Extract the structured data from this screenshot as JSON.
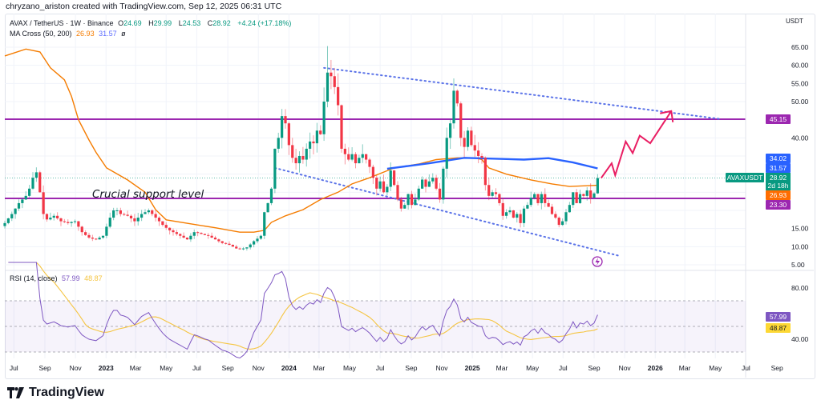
{
  "credit": "chryzano_ariston created with TradingView.com, Sep 12, 2025 06:31 UTC",
  "legend": {
    "symbol": "AVAX / TetherUS · 1W · Binance",
    "o_label": "O",
    "o": "24.69",
    "h_label": "H",
    "h": "29.99",
    "l_label": "L",
    "l": "24.53",
    "c_label": "C",
    "c": "28.92",
    "change": "+4.24 (+17.18%)",
    "ma_name": "MA Cross (50, 200)",
    "ma50": "26.93",
    "ma200": "31.57",
    "ma_icon": "ø"
  },
  "rsi_legend": {
    "name": "RSI (14, close)",
    "rsi": "57.99",
    "ma": "48.87"
  },
  "currency": "USDT",
  "annotation": "Crucial support level",
  "colors": {
    "up": "#089981",
    "down": "#f23645",
    "ma50": "#f57c00",
    "ma200": "#2962ff",
    "level": "#9c27b0",
    "channel": "#5b73e8",
    "arrow": "#e91e63",
    "rsi": "#7e57c2",
    "rsi_ma": "#f5c542"
  },
  "price_ticks": [
    "65.00",
    "60.00",
    "55.00",
    "50.00",
    "40.00",
    "15.00",
    "10.00",
    "5.00"
  ],
  "rsi_ticks": [
    "80.00",
    "40.00"
  ],
  "tags": {
    "level_high": "45.15",
    "blue_a": "34.02",
    "ma200": "31.57",
    "symbol": "AVAXUSDT",
    "last": "28.92",
    "countdown": "2d 18h",
    "ma50": "26.93",
    "level_low": "23.30",
    "rsi": "57.99",
    "rsi_ma": "48.87"
  },
  "time_ticks": [
    {
      "label": "Jul",
      "date": "2022-07-01"
    },
    {
      "label": "Sep",
      "date": "2022-09-01"
    },
    {
      "label": "Nov",
      "date": "2022-11-01"
    },
    {
      "label": "2023",
      "date": "2023-01-01",
      "bold": true
    },
    {
      "label": "Mar",
      "date": "2023-03-01"
    },
    {
      "label": "May",
      "date": "2023-05-01"
    },
    {
      "label": "Jul",
      "date": "2023-07-01"
    },
    {
      "label": "Sep",
      "date": "2023-09-01"
    },
    {
      "label": "Nov",
      "date": "2023-11-01"
    },
    {
      "label": "2024",
      "date": "2024-01-01",
      "bold": true
    },
    {
      "label": "Mar",
      "date": "2024-03-01"
    },
    {
      "label": "May",
      "date": "2024-05-01"
    },
    {
      "label": "Jul",
      "date": "2024-07-01"
    },
    {
      "label": "Sep",
      "date": "2024-09-01"
    },
    {
      "label": "Nov",
      "date": "2024-11-01"
    },
    {
      "label": "2025",
      "date": "2025-01-01",
      "bold": true
    },
    {
      "label": "Mar",
      "date": "2025-03-01"
    },
    {
      "label": "May",
      "date": "2025-05-01"
    },
    {
      "label": "Jul",
      "date": "2025-07-01"
    },
    {
      "label": "Sep",
      "date": "2025-09-01"
    },
    {
      "label": "Nov",
      "date": "2025-11-01"
    },
    {
      "label": "2026",
      "date": "2026-01-01",
      "bold": true
    },
    {
      "label": "Mar",
      "date": "2026-03-01"
    },
    {
      "label": "May",
      "date": "2026-05-01"
    },
    {
      "label": "Jul",
      "date": "2026-07-01"
    },
    {
      "label": "Sep",
      "date": "2026-09-01"
    }
  ],
  "chart_data": {
    "type": "candlestick",
    "interval": "1W",
    "first_week": "2022-06-13",
    "price_range": [
      3,
      69
    ],
    "rsi_range": [
      20,
      90
    ],
    "rsi_bands": [
      70,
      50,
      30
    ],
    "grid": true,
    "closes": [
      16.5,
      17.8,
      19,
      20.5,
      22,
      23,
      24,
      26,
      29,
      30.5,
      25,
      19,
      17.5,
      18,
      18.5,
      17.8,
      17,
      16.8,
      16.5,
      16.8,
      17,
      15.5,
      14,
      13.2,
      12.5,
      12.2,
      12,
      12.5,
      13,
      15.5,
      18,
      20,
      20,
      19,
      18.8,
      18.5,
      17.8,
      17,
      18,
      19,
      19.5,
      20,
      19,
      18,
      17,
      16,
      15.2,
      14.5,
      14,
      13.5,
      13,
      12.5,
      12,
      13,
      14,
      13.8,
      13.5,
      13.2,
      13,
      12.5,
      12,
      11.5,
      11,
      10.8,
      10.5,
      10,
      9.5,
      9.3,
      9.5,
      9.8,
      10.6,
      11.5,
      12.2,
      13,
      19.5,
      22,
      26,
      37,
      40,
      46,
      44,
      38,
      34.5,
      33,
      35,
      34,
      37,
      39,
      38.5,
      42,
      41,
      50,
      58,
      57,
      54,
      49,
      37,
      35.5,
      34,
      35.5,
      33,
      34.5,
      35.5,
      34,
      32,
      29,
      26,
      28,
      25,
      26.5,
      31,
      27,
      23,
      20.5,
      21.5,
      24.5,
      21.5,
      23,
      26,
      28.5,
      26.5,
      28,
      29,
      26,
      23,
      31.5,
      40,
      44,
      53,
      49.5,
      40,
      37.5,
      42,
      38,
      36.5,
      35,
      34.5,
      27,
      24,
      25,
      24.5,
      22,
      18.5,
      19.5,
      20,
      18,
      19,
      16.5,
      20.5,
      21.5,
      23.5,
      24.5,
      22,
      24.5,
      22,
      21,
      19,
      18,
      16,
      17,
      19.5,
      21.5,
      25,
      22,
      24.5,
      24,
      25.5,
      23.5,
      24.69,
      28.92
    ],
    "last_candle": {
      "open": 24.69,
      "high": 29.99,
      "low": 24.53,
      "close": 28.92
    },
    "ma50": [
      [
        "2022-06-13",
        62.6
      ],
      [
        "2022-07-25",
        64.5
      ],
      [
        "2022-08-22",
        63.7
      ],
      [
        "2022-09-12",
        59.3
      ],
      [
        "2022-10-10",
        56
      ],
      [
        "2022-10-24",
        51.5
      ],
      [
        "2022-11-07",
        45
      ],
      [
        "2022-11-28",
        39.4
      ],
      [
        "2022-12-12",
        36
      ],
      [
        "2023-01-02",
        31.7
      ],
      [
        "2023-02-13",
        28.4
      ],
      [
        "2023-03-20",
        25
      ],
      [
        "2023-04-10",
        20.2
      ],
      [
        "2023-05-01",
        17.4
      ],
      [
        "2023-06-19",
        16.3
      ],
      [
        "2023-08-07",
        15.2
      ],
      [
        "2023-09-25",
        14
      ],
      [
        "2023-10-23",
        14
      ],
      [
        "2023-11-13",
        14.5
      ],
      [
        "2023-11-27",
        16.7
      ],
      [
        "2023-12-25",
        18.5
      ],
      [
        "2024-01-29",
        20.2
      ],
      [
        "2024-03-04",
        23
      ],
      [
        "2024-04-08",
        25
      ],
      [
        "2024-05-06",
        27.3
      ],
      [
        "2024-06-10",
        29
      ],
      [
        "2024-07-29",
        31.7
      ],
      [
        "2024-09-16",
        32.8
      ],
      [
        "2024-10-21",
        34
      ],
      [
        "2024-12-02",
        34.5
      ],
      [
        "2025-01-06",
        34.5
      ],
      [
        "2025-01-20",
        34
      ],
      [
        "2025-02-03",
        31.7
      ],
      [
        "2025-03-10",
        30
      ],
      [
        "2025-04-28",
        28.4
      ],
      [
        "2025-06-09",
        27.3
      ],
      [
        "2025-07-14",
        26.6
      ],
      [
        "2025-09-08",
        26.93
      ]
    ],
    "ma200": [
      [
        "2024-07-15",
        31.5
      ],
      [
        "2024-10-07",
        33
      ],
      [
        "2024-12-16",
        34.5
      ],
      [
        "2025-02-03",
        34.3
      ],
      [
        "2025-04-14",
        34
      ],
      [
        "2025-06-02",
        34.4
      ],
      [
        "2025-07-21",
        33.2
      ],
      [
        "2025-09-08",
        31.57
      ]
    ],
    "horizontal_levels": [
      45.15,
      23.3
    ],
    "channel": {
      "upper": [
        [
          "2024-03-11",
          59.3
        ],
        [
          "2026-05-11",
          45.2
        ]
      ],
      "lower": [
        [
          "2023-12-04",
          31.7
        ],
        [
          "2025-10-20",
          7.5
        ]
      ]
    },
    "projection": [
      [
        "2025-09-15",
        28.9
      ],
      [
        "2025-10-06",
        33
      ],
      [
        "2025-10-13",
        29.7
      ],
      [
        "2025-11-03",
        39
      ],
      [
        "2025-11-17",
        35.8
      ],
      [
        "2025-12-01",
        40.6
      ],
      [
        "2025-12-22",
        38.5
      ],
      [
        "2026-02-02",
        47.4
      ]
    ],
    "rsi_period": 14
  }
}
